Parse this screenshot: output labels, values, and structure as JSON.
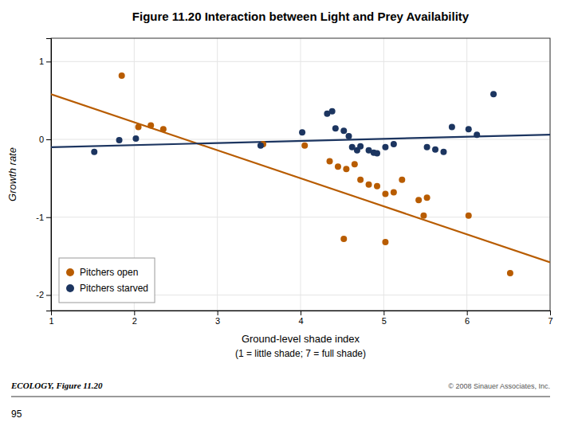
{
  "chart_data": {
    "type": "scatter",
    "title": "Figure 11.20  Interaction between Light and Prey Availability",
    "xlabel": "Ground-level shade index",
    "ylabel": "Growth rate",
    "annotations": [
      "(1 = little shade; 7 = full shade)",
      "ECOLOGY, Figure 11.20",
      "© 2008 Sinauer Associates, Inc.",
      "95"
    ],
    "xlim": [
      1,
      7
    ],
    "ylim": [
      -2.2,
      1.3
    ],
    "xticks": [
      1,
      2,
      3,
      4,
      5,
      6,
      7
    ],
    "yticks": [
      -2,
      -1,
      0,
      1
    ],
    "grid": true,
    "legend": "lower left",
    "series": [
      {
        "name": "Pitchers open",
        "type": "scatter",
        "marker": "circle",
        "color": "#b85c00",
        "x": [
          1.85,
          2.05,
          2.2,
          2.35,
          3.55,
          4.05,
          4.35,
          4.45,
          4.55,
          4.65,
          4.72,
          4.82,
          4.92,
          5.02,
          5.12,
          5.22,
          5.42,
          5.52,
          5.48,
          6.02,
          4.52,
          5.02,
          6.52
        ],
        "values": [
          0.82,
          0.16,
          0.18,
          0.13,
          -0.06,
          -0.08,
          -0.28,
          -0.35,
          -0.38,
          -0.32,
          -0.52,
          -0.58,
          -0.6,
          -0.7,
          -0.68,
          -0.52,
          -0.78,
          -0.75,
          -0.98,
          -0.98,
          -1.28,
          -1.32,
          -1.72
        ]
      },
      {
        "name": "Pitchers starved",
        "type": "scatter",
        "marker": "circle",
        "color": "#1c3560",
        "x": [
          1.52,
          1.82,
          2.02,
          3.52,
          4.02,
          4.32,
          4.38,
          4.42,
          4.52,
          4.58,
          4.62,
          4.68,
          4.72,
          4.82,
          4.88,
          4.92,
          5.02,
          5.12,
          5.52,
          5.62,
          5.72,
          5.82,
          6.02,
          6.12,
          6.32
        ],
        "values": [
          -0.16,
          -0.01,
          0.01,
          -0.08,
          0.09,
          0.33,
          0.36,
          0.14,
          0.11,
          0.04,
          -0.1,
          -0.14,
          -0.09,
          -0.14,
          -0.17,
          -0.18,
          -0.1,
          -0.06,
          -0.1,
          -0.13,
          -0.16,
          0.16,
          0.13,
          0.06,
          0.58
        ]
      },
      {
        "type": "line",
        "line_style": "solid",
        "color": "#b85c00",
        "x": [
          1.0,
          7.0
        ],
        "values": [
          0.58,
          -1.58
        ]
      },
      {
        "type": "line",
        "line_style": "solid",
        "color": "#1c3560",
        "x": [
          1.0,
          7.0
        ],
        "values": [
          -0.1,
          0.06
        ]
      }
    ]
  }
}
